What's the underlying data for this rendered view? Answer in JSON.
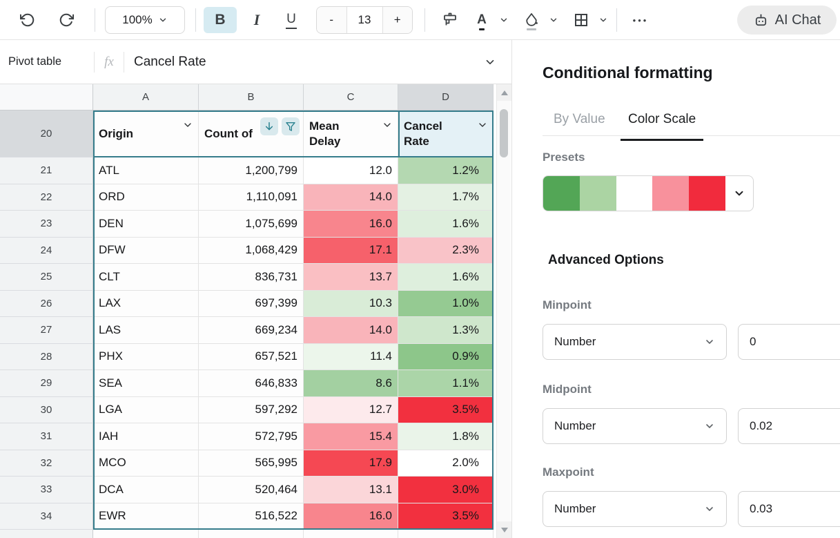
{
  "toolbar": {
    "zoom": "100%",
    "bold": "B",
    "italic": "I",
    "underline": "U",
    "text_color_letter": "A",
    "minus": "-",
    "font_size": "13",
    "plus": "+",
    "more": "•••",
    "ai_chat": "AI Chat",
    "icons": {
      "undo": "↺",
      "redo": "↻",
      "paint_format": "brush",
      "text_color": "A underline",
      "fill_color": "paint droplet",
      "borders": "grid",
      "ai_chat": "robot"
    }
  },
  "formula_bar": {
    "name_box": "Pivot table",
    "fx": "fx",
    "value": "Cancel Rate"
  },
  "grid": {
    "column_letters": [
      "A",
      "B",
      "C",
      "D"
    ],
    "header_row": {
      "num": "20",
      "cells": [
        {
          "label": "Origin",
          "icons": [
            "chevron-down"
          ]
        },
        {
          "label": "Count of",
          "icons": [
            "sort-descending",
            "filter-funnel"
          ]
        },
        {
          "label": "Mean Delay",
          "icons": [
            "chevron-down"
          ]
        },
        {
          "label": "Cancel Rate",
          "icons": [
            "chevron-down"
          ]
        }
      ]
    },
    "rows": [
      {
        "num": "21",
        "origin": "ATL",
        "count": "1,200,799",
        "delay": "12.0",
        "delay_bg": "#ffffff",
        "rate": "1.2%",
        "rate_bg": "#b4d8b1"
      },
      {
        "num": "22",
        "origin": "ORD",
        "count": "1,110,091",
        "delay": "14.0",
        "delay_bg": "#f9b4ba",
        "rate": "1.7%",
        "rate_bg": "#e4f1e3"
      },
      {
        "num": "23",
        "origin": "DEN",
        "count": "1,075,699",
        "delay": "16.0",
        "delay_bg": "#f8858d",
        "rate": "1.6%",
        "rate_bg": "#deefdd"
      },
      {
        "num": "24",
        "origin": "DFW",
        "count": "1,068,429",
        "delay": "17.1",
        "delay_bg": "#f6616b",
        "rate": "2.3%",
        "rate_bg": "#f9c3c8"
      },
      {
        "num": "25",
        "origin": "CLT",
        "count": "836,731",
        "delay": "13.7",
        "delay_bg": "#fabfc3",
        "rate": "1.6%",
        "rate_bg": "#deefdd"
      },
      {
        "num": "26",
        "origin": "LAX",
        "count": "697,399",
        "delay": "10.3",
        "delay_bg": "#d9ecd7",
        "rate": "1.0%",
        "rate_bg": "#95ca92"
      },
      {
        "num": "27",
        "origin": "LAS",
        "count": "669,234",
        "delay": "14.0",
        "delay_bg": "#f9b4ba",
        "rate": "1.3%",
        "rate_bg": "#cfe7cc"
      },
      {
        "num": "28",
        "origin": "PHX",
        "count": "657,521",
        "delay": "11.4",
        "delay_bg": "#ecf6eb",
        "rate": "0.9%",
        "rate_bg": "#8dc68a"
      },
      {
        "num": "29",
        "origin": "SEA",
        "count": "646,833",
        "delay": "8.6",
        "delay_bg": "#a3d0a1",
        "rate": "1.1%",
        "rate_bg": "#abd5a8"
      },
      {
        "num": "30",
        "origin": "LGA",
        "count": "597,292",
        "delay": "12.7",
        "delay_bg": "#fdeaec",
        "rate": "3.5%",
        "rate_bg": "#f2303f"
      },
      {
        "num": "31",
        "origin": "IAH",
        "count": "572,795",
        "delay": "15.4",
        "delay_bg": "#f99aa2",
        "rate": "1.8%",
        "rate_bg": "#eaf4e9"
      },
      {
        "num": "32",
        "origin": "MCO",
        "count": "565,995",
        "delay": "17.9",
        "delay_bg": "#f54853",
        "rate": "2.0%",
        "rate_bg": "#ffffff"
      },
      {
        "num": "33",
        "origin": "DCA",
        "count": "520,464",
        "delay": "13.1",
        "delay_bg": "#fbd6d9",
        "rate": "3.0%",
        "rate_bg": "#f2303f"
      },
      {
        "num": "34",
        "origin": "EWR",
        "count": "516,522",
        "delay": "16.0",
        "delay_bg": "#f8858d",
        "rate": "3.5%",
        "rate_bg": "#f2303f"
      }
    ]
  },
  "panel": {
    "title": "Conditional formatting",
    "tab_by_value": "By Value",
    "tab_color_scale": "Color Scale",
    "active_tab": "Color Scale",
    "presets_label": "Presets",
    "preset_colors": [
      "#53a656",
      "#abd4a3",
      "#ffffff",
      "#f8919c",
      "#f12b3d"
    ],
    "advanced_options": "Advanced Options",
    "fields": [
      {
        "label": "Minpoint",
        "type": "Number",
        "value": "0"
      },
      {
        "label": "Midpoint",
        "type": "Number",
        "value": "0.02"
      },
      {
        "label": "Maxpoint",
        "type": "Number",
        "value": "0.03"
      }
    ]
  },
  "colors": {
    "selection_border": "#357c8b",
    "selected_cell_bg": "#e4f1f6",
    "header_badge_bg": "#d9e9ed",
    "header_badge_icon": "#27808e",
    "bold_active_bg": "#d6ebf2"
  }
}
